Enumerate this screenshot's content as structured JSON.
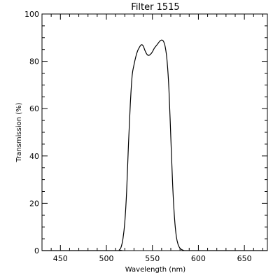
{
  "chart_data": {
    "type": "line",
    "title": "Filter 1515",
    "xlabel": "Wavelength (nm)",
    "ylabel": "Transmission (%)",
    "xlim": [
      430,
      675
    ],
    "ylim": [
      0,
      100
    ],
    "xticks": [
      450,
      500,
      550,
      600,
      650
    ],
    "yticks": [
      0,
      20,
      40,
      60,
      80,
      100
    ],
    "xtick_labels": [
      "450",
      "500",
      "550",
      "600",
      "650"
    ],
    "ytick_labels": [
      "0",
      "20",
      "40",
      "60",
      "80",
      "100"
    ],
    "grid": false,
    "legend": "none",
    "line_color": "#000000",
    "series": [
      {
        "x": [
          430,
          510,
          514,
          516,
          518,
          520,
          522,
          524,
          526,
          528,
          530,
          532,
          534,
          536,
          538,
          540,
          542,
          544,
          546,
          548,
          550,
          552,
          554,
          556,
          558,
          560,
          562,
          564,
          566,
          568,
          570,
          572,
          574,
          576,
          578,
          580,
          582,
          584,
          586,
          590,
          675
        ],
        "y": [
          0,
          0,
          0.3,
          1.5,
          5,
          12,
          25,
          45,
          62,
          74,
          78.5,
          82,
          84.5,
          86,
          87,
          86.5,
          84.5,
          83,
          82.5,
          83,
          84,
          85.5,
          86.5,
          87.5,
          88.5,
          89,
          88.5,
          86,
          80,
          68,
          48,
          28,
          14,
          6,
          2.5,
          1,
          0.4,
          0.1,
          0,
          0,
          0
        ]
      }
    ]
  }
}
